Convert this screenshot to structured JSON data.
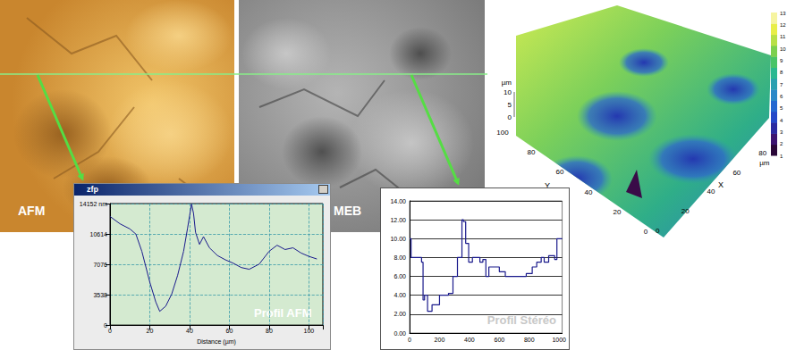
{
  "images": {
    "afm_label": "AFM",
    "meb_label": "MEB"
  },
  "surface_3d": {
    "z_unit": "µm",
    "z_ticks": [
      10,
      5,
      0
    ],
    "y_label": "Y",
    "y_ticks": [
      100,
      80,
      60,
      40,
      20,
      0
    ],
    "x_label": "X",
    "x_unit": "µm",
    "x_ticks": [
      0,
      20,
      40,
      60,
      80
    ],
    "colorbar": {
      "range": [
        1,
        13
      ],
      "ticks": [
        1,
        2,
        3,
        4,
        5,
        6,
        7,
        8,
        9,
        10,
        11,
        12,
        13
      ]
    }
  },
  "chart_data": [
    {
      "type": "line",
      "window_title": "zfp",
      "annotation": "Profil AFM",
      "xlabel": "Distance (µm)",
      "color": "#1a1a8c",
      "grid": true,
      "xlim": [
        0,
        107
      ],
      "xticks": [
        0,
        20,
        40,
        60,
        80,
        100
      ],
      "ylim": [
        0,
        14152
      ],
      "yticks": [
        0,
        3538,
        7076,
        10614,
        {
          "value": 14152,
          "label": "14152 nm"
        }
      ],
      "x": [
        0,
        5,
        10,
        13,
        16,
        20,
        23,
        25,
        28,
        31,
        34,
        37,
        39,
        41,
        42,
        43,
        45,
        47,
        50,
        54,
        58,
        62,
        66,
        70,
        75,
        80,
        84,
        88,
        92,
        96,
        100,
        104
      ],
      "values": [
        12650,
        11800,
        11200,
        10600,
        8600,
        5000,
        2700,
        1600,
        2200,
        3600,
        5800,
        8600,
        11300,
        14100,
        13000,
        10800,
        9400,
        10300,
        9000,
        8100,
        7600,
        7200,
        6700,
        6500,
        7100,
        8600,
        9300,
        8800,
        9000,
        8400,
        8000,
        7700
      ]
    },
    {
      "type": "line",
      "annotation": "Profil Stéréo",
      "color": "#1a1a8c",
      "grid": true,
      "xlim": [
        0,
        1020
      ],
      "xticks": [
        0,
        200,
        400,
        600,
        800,
        1000
      ],
      "ylim": [
        0,
        14
      ],
      "yticks": [
        {
          "value": 0,
          "label": "0.00"
        },
        {
          "value": 2,
          "label": "2.00"
        },
        {
          "value": 4,
          "label": "4.00"
        },
        {
          "value": 6,
          "label": "6.00"
        },
        {
          "value": 8,
          "label": "8.00"
        },
        {
          "value": 10,
          "label": "10.00"
        },
        {
          "value": 12,
          "label": "12.00"
        },
        {
          "value": 14,
          "label": "14.00"
        }
      ],
      "x": [
        0,
        10,
        60,
        80,
        90,
        100,
        120,
        150,
        200,
        260,
        290,
        320,
        350,
        360,
        375,
        395,
        420,
        450,
        470,
        490,
        510,
        530,
        560,
        600,
        640,
        720,
        780,
        820,
        850,
        880,
        900,
        930,
        970,
        985,
        1020
      ],
      "values": [
        10,
        8,
        8,
        7.5,
        3.5,
        4,
        2.3,
        3,
        4,
        4.2,
        6,
        8,
        12,
        11.8,
        9.5,
        7.5,
        8,
        8,
        7.5,
        7.8,
        6,
        7,
        7,
        6.5,
        6,
        6,
        6.3,
        7,
        7.5,
        8,
        7.5,
        8.2,
        7.8,
        10,
        10
      ]
    }
  ]
}
